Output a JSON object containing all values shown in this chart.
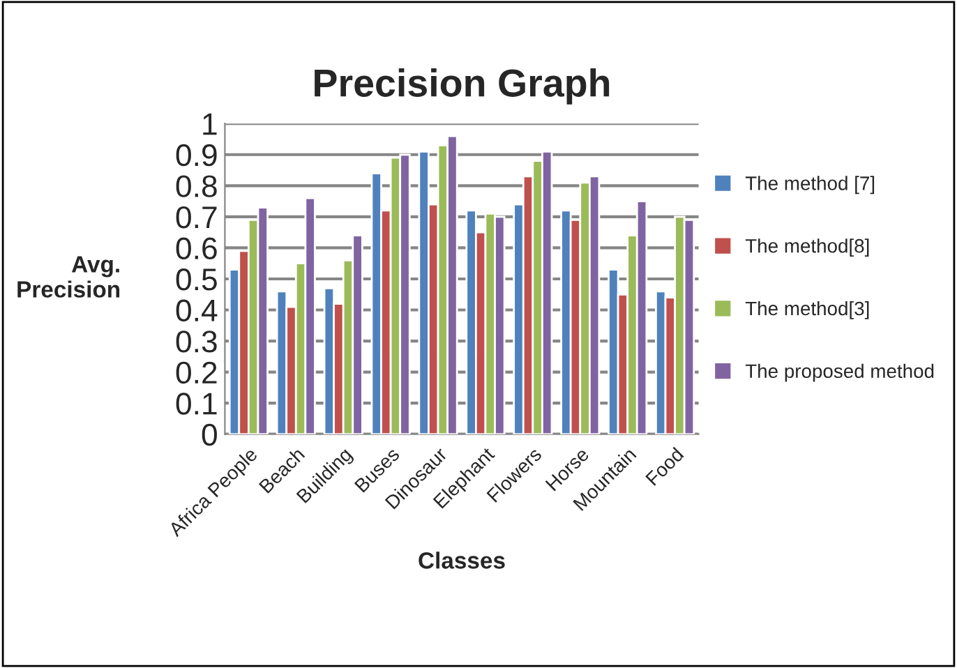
{
  "chart_data": {
    "type": "bar",
    "title": "Precision Graph",
    "xlabel": "Classes",
    "ylabel": "Avg.\nPrecision",
    "categories": [
      "Africa People",
      "Beach",
      "Building",
      "Buses",
      "Dinosaur",
      "Elephant",
      "Flowers",
      "Horse",
      "Mountain",
      "Food"
    ],
    "series": [
      {
        "name": "The method [7]",
        "color": "#4f81bd",
        "values": [
          0.53,
          0.46,
          0.47,
          0.84,
          0.91,
          0.72,
          0.74,
          0.72,
          0.53,
          0.46
        ]
      },
      {
        "name": "The method[8]",
        "color": "#c0504d",
        "values": [
          0.59,
          0.41,
          0.42,
          0.72,
          0.74,
          0.65,
          0.83,
          0.69,
          0.45,
          0.44
        ]
      },
      {
        "name": "The method[3]",
        "color": "#9bbb59",
        "values": [
          0.69,
          0.55,
          0.56,
          0.89,
          0.93,
          0.71,
          0.88,
          0.81,
          0.64,
          0.7
        ]
      },
      {
        "name": "The proposed method",
        "color": "#8064a2",
        "values": [
          0.73,
          0.76,
          0.64,
          0.9,
          0.96,
          0.7,
          0.91,
          0.83,
          0.75,
          0.69
        ]
      }
    ],
    "ylim": [
      0,
      1
    ],
    "yticks": [
      0,
      0.1,
      0.2,
      0.3,
      0.4,
      0.5,
      0.6,
      0.7,
      0.8,
      0.9,
      1
    ],
    "grid": "y",
    "legend": "right"
  }
}
